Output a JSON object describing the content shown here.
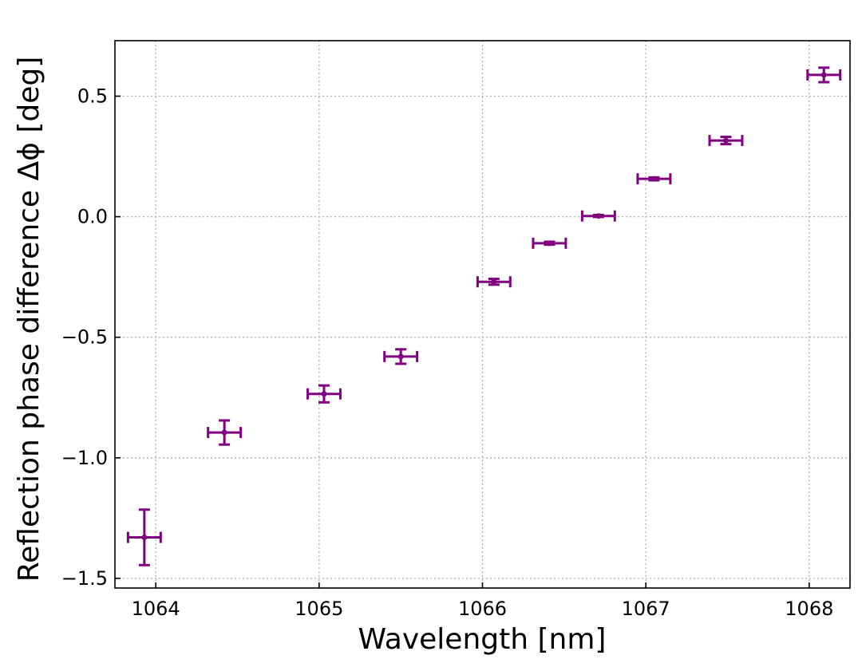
{
  "chart_data": {
    "type": "scatter",
    "title": "",
    "xlabel": "Wavelength [nm]",
    "ylabel": "Reflection phase difference Δϕ [deg]",
    "xlim": [
      1063.75,
      1068.25
    ],
    "ylim": [
      -1.54,
      0.73
    ],
    "xticks": [
      1064,
      1065,
      1066,
      1067,
      1068
    ],
    "xtick_labels": [
      "1064",
      "1065",
      "1066",
      "1067",
      "1068"
    ],
    "yticks": [
      -1.5,
      -1.0,
      -0.5,
      0.0,
      0.5
    ],
    "ytick_labels": [
      "−1.5",
      "−1.0",
      "−0.5",
      "0.0",
      "0.5"
    ],
    "grid": true,
    "legend": false,
    "color": "#800080",
    "series": [
      {
        "points": [
          {
            "x": 1063.93,
            "y": -1.33,
            "xerr": 0.1,
            "yerr": 0.115
          },
          {
            "x": 1064.42,
            "y": -0.895,
            "xerr": 0.1,
            "yerr": 0.05
          },
          {
            "x": 1065.03,
            "y": -0.735,
            "xerr": 0.1,
            "yerr": 0.035
          },
          {
            "x": 1065.5,
            "y": -0.58,
            "xerr": 0.1,
            "yerr": 0.03
          },
          {
            "x": 1066.07,
            "y": -0.27,
            "xerr": 0.1,
            "yerr": 0.012
          },
          {
            "x": 1066.41,
            "y": -0.11,
            "xerr": 0.1,
            "yerr": 0.006
          },
          {
            "x": 1066.71,
            "y": 0.003,
            "xerr": 0.1,
            "yerr": 0.004
          },
          {
            "x": 1067.05,
            "y": 0.157,
            "xerr": 0.1,
            "yerr": 0.006
          },
          {
            "x": 1067.49,
            "y": 0.316,
            "xerr": 0.1,
            "yerr": 0.015
          },
          {
            "x": 1068.09,
            "y": 0.588,
            "xerr": 0.1,
            "yerr": 0.03
          }
        ]
      }
    ]
  }
}
